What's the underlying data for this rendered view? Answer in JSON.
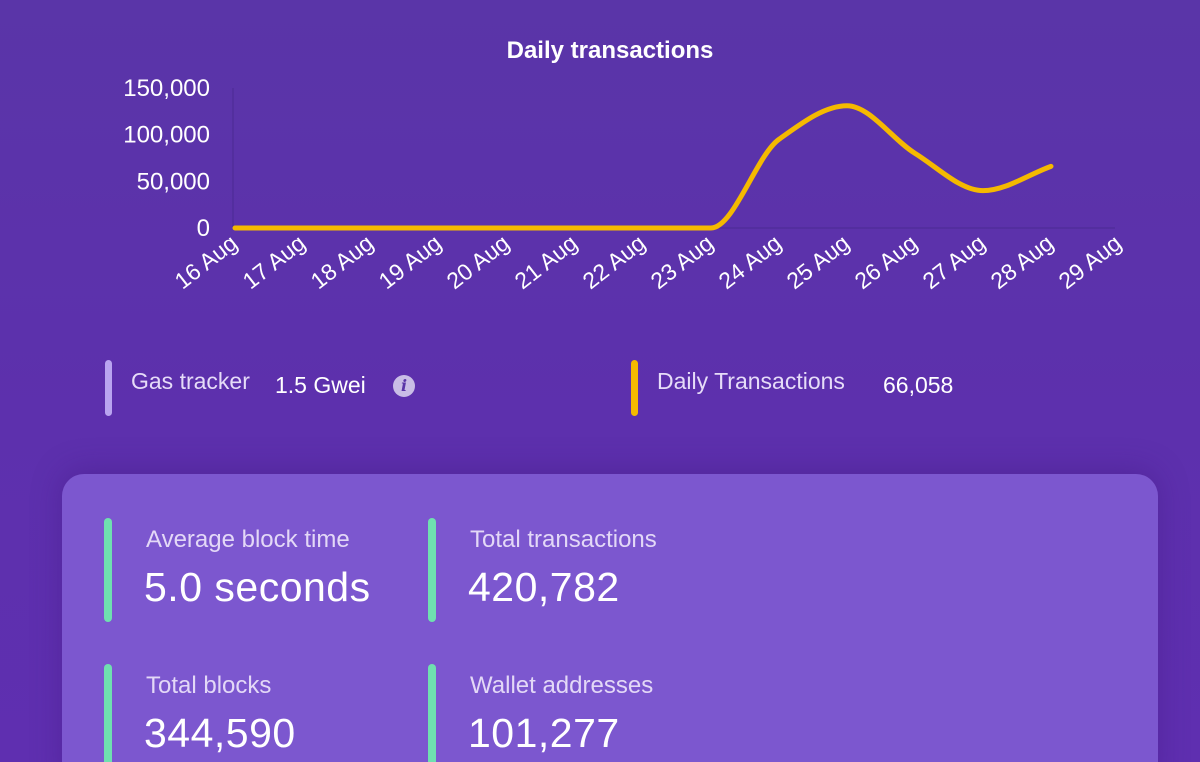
{
  "chart_data": {
    "type": "line",
    "title": "Daily transactions",
    "categories": [
      "16 Aug",
      "17 Aug",
      "18 Aug",
      "19 Aug",
      "20 Aug",
      "21 Aug",
      "22 Aug",
      "23 Aug",
      "24 Aug",
      "25 Aug",
      "26 Aug",
      "27 Aug",
      "28 Aug",
      "29 Aug"
    ],
    "series": [
      {
        "values": [
          0,
          0,
          0,
          0,
          0,
          0,
          0,
          0,
          95000,
          131000,
          80000,
          40000,
          66058,
          null
        ],
        "color": "#f5b900"
      }
    ],
    "yticks": [
      "150,000",
      "100,000",
      "50,000",
      "0"
    ],
    "ylim": [
      0,
      150000
    ],
    "grid": false,
    "legend": false
  },
  "legend": {
    "gas": {
      "label": "Gas tracker",
      "value": "1.5 Gwei",
      "color": "#b9a4f0",
      "icon": "info-icon"
    },
    "daily": {
      "label": "Daily Transactions",
      "value": "66,058",
      "color": "#f5b900"
    }
  },
  "stats": {
    "avg_block_time": {
      "label": "Average block time",
      "value": "5.0 seconds"
    },
    "total_transactions": {
      "label": "Total transactions",
      "value": "420,782"
    },
    "total_blocks": {
      "label": "Total blocks",
      "value": "344,590"
    },
    "wallet_addresses": {
      "label": "Wallet addresses",
      "value": "101,277"
    }
  }
}
